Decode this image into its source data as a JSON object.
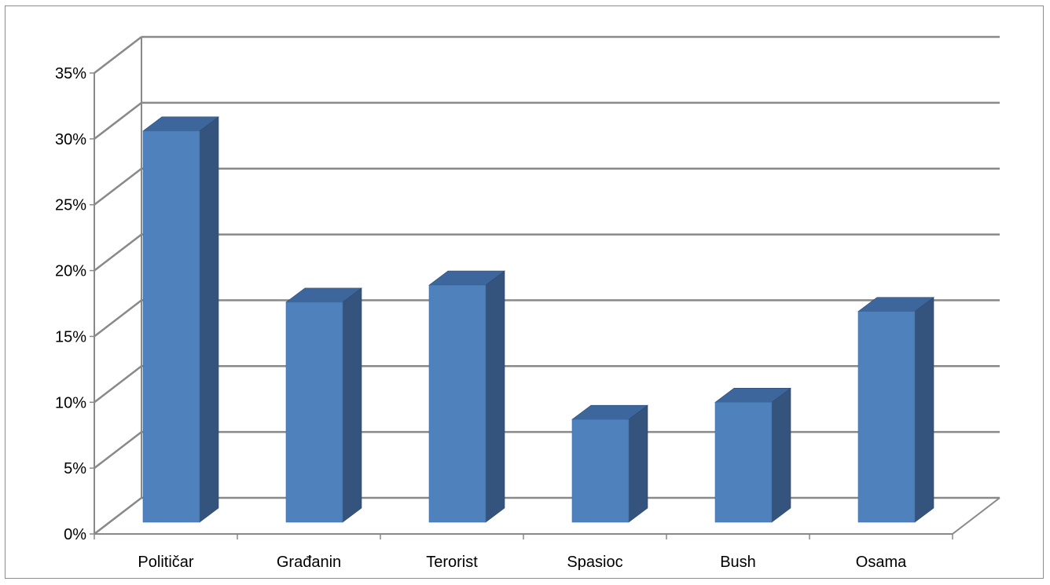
{
  "chart_data": {
    "type": "bar",
    "style": "3d-column",
    "categories": [
      "Političar",
      "Građanin",
      "Terorist",
      "Spasioc",
      "Bush",
      "Osama"
    ],
    "values": [
      0.3,
      0.17,
      0.183,
      0.081,
      0.094,
      0.163
    ],
    "ylim": [
      0,
      0.35
    ],
    "yticks": [
      "0%",
      "5%",
      "10%",
      "15%",
      "20%",
      "25%",
      "30%",
      "35%"
    ],
    "title": "",
    "xlabel": "",
    "ylabel": "",
    "grid": true,
    "legend": "none",
    "colors": {
      "bar_front": "#4f81bd",
      "bar_side": "#34547e",
      "bar_top": "#3d679c",
      "grid": "#898989"
    }
  }
}
